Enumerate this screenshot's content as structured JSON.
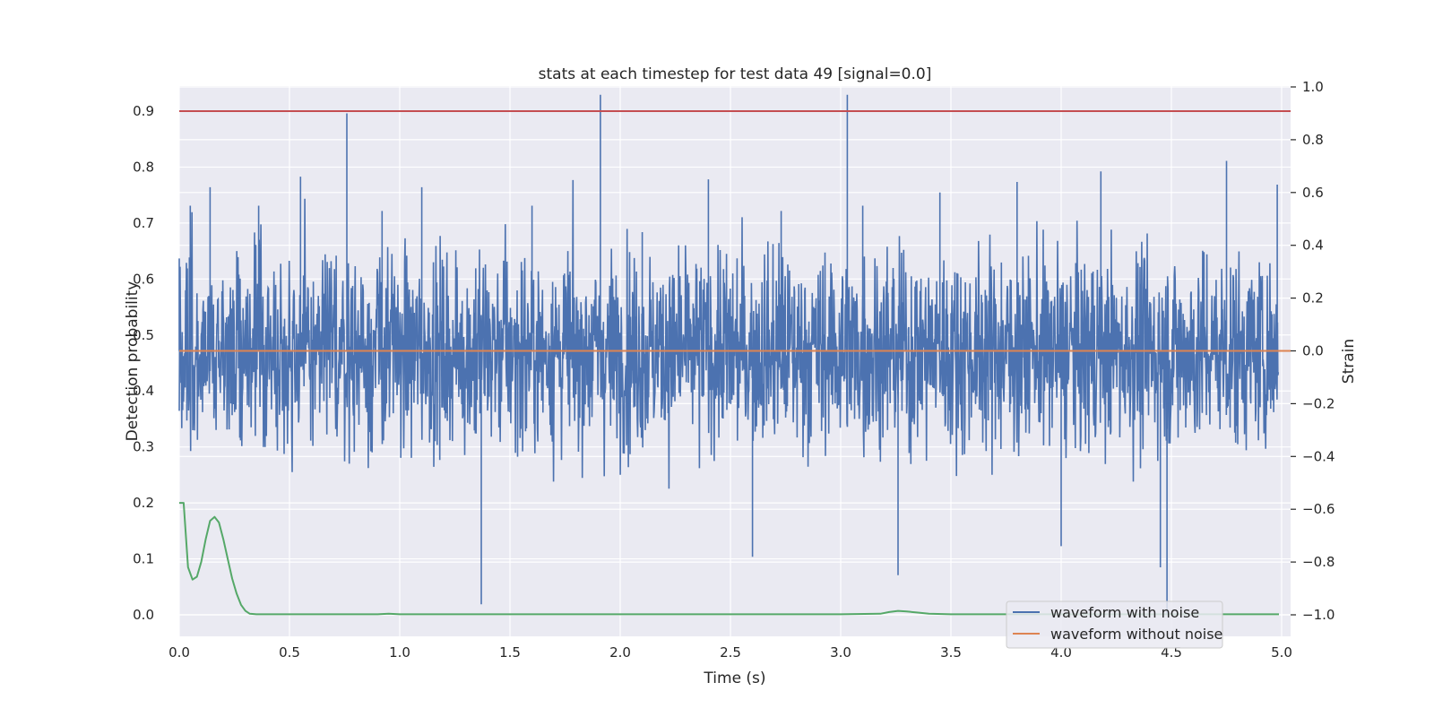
{
  "chart_data": {
    "type": "line",
    "title": "stats at each timestep for test data 49 [signal=0.0]",
    "xlabel": "Time (s)",
    "ylabel": "Detection probability",
    "y2label": "Strain",
    "xlim": [
      0.0,
      5.0
    ],
    "ylim": [
      0.0,
      0.9
    ],
    "y2lim": [
      -1.0,
      1.0
    ],
    "xticks": [
      "0.0",
      "0.5",
      "1.0",
      "1.5",
      "2.0",
      "2.5",
      "3.0",
      "3.5",
      "4.0",
      "4.5",
      "5.0"
    ],
    "yticks": [
      "0.0",
      "0.1",
      "0.2",
      "0.3",
      "0.4",
      "0.5",
      "0.6",
      "0.7",
      "0.8",
      "0.9"
    ],
    "y2ticks": [
      "−1.0",
      "−0.8",
      "−0.6",
      "−0.4",
      "−0.2",
      "0.0",
      "0.2",
      "0.4",
      "0.6",
      "0.8",
      "1.0"
    ],
    "grid": true,
    "legend_position": "bottom-right",
    "series": [
      {
        "name": "waveform with noise",
        "axis": "right",
        "color": "#4c72b0",
        "description_points": {
          "x": [
            0.0,
            0.05,
            0.14,
            0.36,
            0.55,
            0.76,
            0.92,
            1.1,
            1.37,
            1.6,
            1.91,
            2.1,
            2.4,
            2.6,
            2.73,
            3.03,
            3.1,
            3.26,
            3.45,
            3.8,
            4.0,
            4.18,
            4.45,
            4.48,
            4.75,
            4.98
          ],
          "y": [
            0.35,
            0.55,
            0.62,
            0.55,
            0.66,
            0.9,
            0.53,
            0.62,
            -0.96,
            0.55,
            0.97,
            0.45,
            0.65,
            -0.78,
            0.53,
            0.97,
            0.55,
            -0.85,
            0.6,
            0.64,
            -0.74,
            0.68,
            -0.82,
            -1.0,
            0.72,
            0.63
          ]
        }
      },
      {
        "name": "waveform without noise",
        "axis": "right",
        "color": "#dd8452",
        "x": [
          0.0,
          5.0
        ],
        "y": [
          0.0,
          0.0
        ]
      },
      {
        "name": "",
        "axis": "left",
        "color": "#55a868",
        "x": [
          0.0,
          0.02,
          0.04,
          0.06,
          0.08,
          0.1,
          0.12,
          0.14,
          0.16,
          0.18,
          0.2,
          0.22,
          0.24,
          0.26,
          0.28,
          0.3,
          0.32,
          0.35,
          0.5,
          0.9,
          0.95,
          1.0,
          1.5,
          2.0,
          2.5,
          3.0,
          3.18,
          3.22,
          3.26,
          3.3,
          3.35,
          3.4,
          3.5,
          4.0,
          4.5,
          5.0
        ],
        "y": [
          0.2,
          0.2,
          0.085,
          0.063,
          0.068,
          0.095,
          0.135,
          0.168,
          0.175,
          0.165,
          0.135,
          0.1,
          0.065,
          0.038,
          0.018,
          0.007,
          0.002,
          0.001,
          0.001,
          0.001,
          0.002,
          0.001,
          0.001,
          0.001,
          0.001,
          0.001,
          0.002,
          0.005,
          0.007,
          0.006,
          0.004,
          0.002,
          0.001,
          0.001,
          0.001,
          0.001
        ]
      },
      {
        "name": "",
        "axis": "left",
        "color": "#c44e52",
        "x": [
          0.0,
          5.0
        ],
        "y": [
          0.9,
          0.9
        ]
      }
    ]
  }
}
